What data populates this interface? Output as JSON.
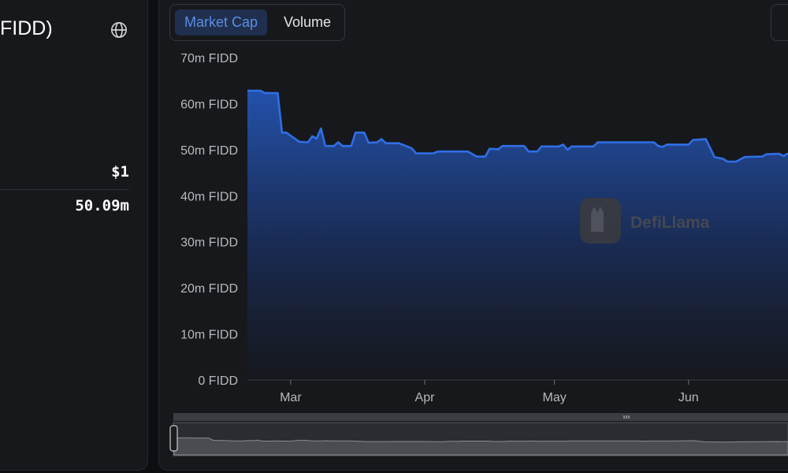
{
  "sidebar": {
    "title": "FIDD)",
    "price": "$1",
    "market_cap": "50.09m"
  },
  "tabs": [
    {
      "label": "Market Cap",
      "active": true
    },
    {
      "label": "Volume",
      "active": false
    }
  ],
  "colors": {
    "accent": "#2f6fe6",
    "line": "#2f6fe6",
    "tab_active_bg": "#1f2f4d",
    "tab_active_text": "#5b8ee6"
  },
  "watermark": "DefiLlama",
  "chart_data": {
    "type": "area",
    "ylabel": "",
    "xlabel": "",
    "ylim": [
      0,
      70000000
    ],
    "y_ticks": [
      {
        "value": 0,
        "label": "0 FIDD"
      },
      {
        "value": 10000000,
        "label": "10m FIDD"
      },
      {
        "value": 20000000,
        "label": "20m FIDD"
      },
      {
        "value": 30000000,
        "label": "30m FIDD"
      },
      {
        "value": 40000000,
        "label": "40m FIDD"
      },
      {
        "value": 50000000,
        "label": "50m FIDD"
      },
      {
        "value": 60000000,
        "label": "60m FIDD"
      },
      {
        "value": 70000000,
        "label": "70m FIDD"
      }
    ],
    "x_ticks": [
      {
        "date": "2025-03-01",
        "label": "Mar"
      },
      {
        "date": "2025-04-01",
        "label": "Apr"
      },
      {
        "date": "2025-05-01",
        "label": "May"
      },
      {
        "date": "2025-06-01",
        "label": "Jun"
      }
    ],
    "xlim": [
      "2025-02-19",
      "2025-06-24"
    ],
    "grid": false,
    "series": [
      {
        "values": [
          [
            "2025-02-19",
            62.8
          ],
          [
            "2025-02-22",
            62.8
          ],
          [
            "2025-02-23",
            62.3
          ],
          [
            "2025-02-26",
            62.3
          ],
          [
            "2025-02-27",
            53.7
          ],
          [
            "2025-02-28",
            53.7
          ],
          [
            "2025-03-03",
            51.7
          ],
          [
            "2025-03-05",
            51.6
          ],
          [
            "2025-03-06",
            52.9
          ],
          [
            "2025-03-07",
            52.4
          ],
          [
            "2025-03-08",
            54.6
          ],
          [
            "2025-03-09",
            50.8
          ],
          [
            "2025-03-11",
            50.8
          ],
          [
            "2025-03-12",
            51.6
          ],
          [
            "2025-03-13",
            50.8
          ],
          [
            "2025-03-15",
            50.8
          ],
          [
            "2025-03-16",
            53.7
          ],
          [
            "2025-03-18",
            53.7
          ],
          [
            "2025-03-19",
            51.5
          ],
          [
            "2025-03-21",
            51.6
          ],
          [
            "2025-03-22",
            52.3
          ],
          [
            "2025-03-23",
            51.4
          ],
          [
            "2025-03-26",
            51.4
          ],
          [
            "2025-03-29",
            50.3
          ],
          [
            "2025-03-30",
            49.2
          ],
          [
            "2025-04-03",
            49.2
          ],
          [
            "2025-04-04",
            49.6
          ],
          [
            "2025-04-11",
            49.6
          ],
          [
            "2025-04-13",
            48.5
          ],
          [
            "2025-04-15",
            48.5
          ],
          [
            "2025-04-16",
            50.2
          ],
          [
            "2025-04-18",
            50.1
          ],
          [
            "2025-04-19",
            50.8
          ],
          [
            "2025-04-24",
            50.8
          ],
          [
            "2025-04-25",
            49.6
          ],
          [
            "2025-04-27",
            49.6
          ],
          [
            "2025-04-28",
            50.7
          ],
          [
            "2025-05-02",
            50.7
          ],
          [
            "2025-05-03",
            51.1
          ],
          [
            "2025-05-04",
            50.0
          ],
          [
            "2025-05-05",
            50.7
          ],
          [
            "2025-05-10",
            50.7
          ],
          [
            "2025-05-11",
            51.6
          ],
          [
            "2025-05-24",
            51.6
          ],
          [
            "2025-05-25",
            50.8
          ],
          [
            "2025-05-26",
            50.6
          ],
          [
            "2025-05-27",
            51.1
          ],
          [
            "2025-06-01",
            51.1
          ],
          [
            "2025-06-02",
            52.1
          ],
          [
            "2025-06-05",
            52.3
          ],
          [
            "2025-06-07",
            48.4
          ],
          [
            "2025-06-09",
            48.0
          ],
          [
            "2025-06-10",
            47.4
          ],
          [
            "2025-06-12",
            47.4
          ],
          [
            "2025-06-14",
            48.4
          ],
          [
            "2025-06-18",
            48.5
          ],
          [
            "2025-06-19",
            49.0
          ],
          [
            "2025-06-22",
            49.1
          ],
          [
            "2025-06-23",
            48.6
          ],
          [
            "2025-06-24",
            49.2
          ]
        ]
      }
    ]
  }
}
